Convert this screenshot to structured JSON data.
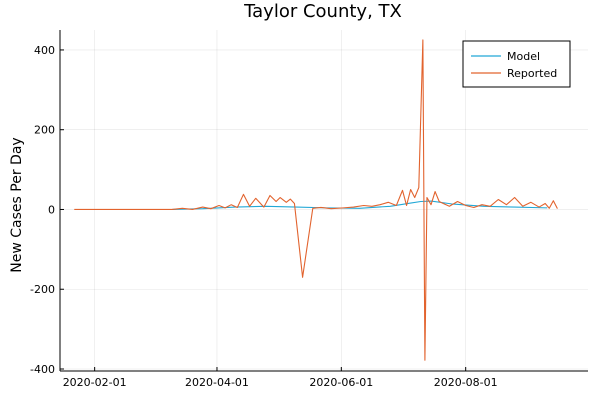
{
  "chart_data": {
    "type": "line",
    "title": "Taylor County, TX",
    "xlabel": "",
    "ylabel": "New Cases Per Day",
    "x_axis_type": "date",
    "xlim": [
      "2020-01-15",
      "2020-09-30"
    ],
    "ylim": [
      -405,
      450
    ],
    "x_ticks": [
      "2020-02-01",
      "2020-04-01",
      "2020-06-01",
      "2020-08-01"
    ],
    "y_ticks": [
      -400,
      -200,
      0,
      200,
      400
    ],
    "grid": true,
    "legend_position": "top-right",
    "series": [
      {
        "name": "Model",
        "color": "#22a8d6",
        "x": [
          "2020-03-10",
          "2020-03-25",
          "2020-04-10",
          "2020-04-25",
          "2020-05-10",
          "2020-05-25",
          "2020-06-10",
          "2020-06-25",
          "2020-07-05",
          "2020-07-10",
          "2020-07-15",
          "2020-07-25",
          "2020-08-10",
          "2020-08-25",
          "2020-09-10"
        ],
        "y": [
          0,
          2,
          6,
          8,
          6,
          4,
          3,
          8,
          16,
          20,
          21,
          14,
          8,
          6,
          4
        ]
      },
      {
        "name": "Reported",
        "color": "#e2632e",
        "x": [
          "2020-01-22",
          "2020-02-15",
          "2020-03-10",
          "2020-03-15",
          "2020-03-20",
          "2020-03-25",
          "2020-03-29",
          "2020-04-02",
          "2020-04-05",
          "2020-04-08",
          "2020-04-11",
          "2020-04-14",
          "2020-04-17",
          "2020-04-20",
          "2020-04-24",
          "2020-04-27",
          "2020-04-30",
          "2020-05-02",
          "2020-05-05",
          "2020-05-07",
          "2020-05-09",
          "2020-05-13",
          "2020-05-18",
          "2020-05-22",
          "2020-05-27",
          "2020-06-02",
          "2020-06-07",
          "2020-06-12",
          "2020-06-16",
          "2020-06-20",
          "2020-06-24",
          "2020-06-28",
          "2020-07-01",
          "2020-07-03",
          "2020-07-05",
          "2020-07-07",
          "2020-07-09",
          "2020-07-11",
          "2020-07-12",
          "2020-07-13",
          "2020-07-15",
          "2020-07-17",
          "2020-07-19",
          "2020-07-21",
          "2020-07-24",
          "2020-07-28",
          "2020-08-01",
          "2020-08-05",
          "2020-08-09",
          "2020-08-13",
          "2020-08-17",
          "2020-08-21",
          "2020-08-25",
          "2020-08-29",
          "2020-09-02",
          "2020-09-06",
          "2020-09-09",
          "2020-09-11",
          "2020-09-13",
          "2020-09-15"
        ],
        "y": [
          0,
          0,
          0,
          3,
          0,
          6,
          2,
          10,
          4,
          12,
          5,
          38,
          8,
          28,
          6,
          35,
          20,
          30,
          18,
          26,
          15,
          -170,
          3,
          5,
          2,
          4,
          6,
          10,
          8,
          12,
          18,
          10,
          48,
          10,
          50,
          30,
          55,
          425,
          -378,
          30,
          12,
          45,
          20,
          15,
          8,
          20,
          10,
          5,
          12,
          8,
          25,
          12,
          30,
          8,
          18,
          6,
          15,
          3,
          22,
          2
        ]
      }
    ]
  }
}
